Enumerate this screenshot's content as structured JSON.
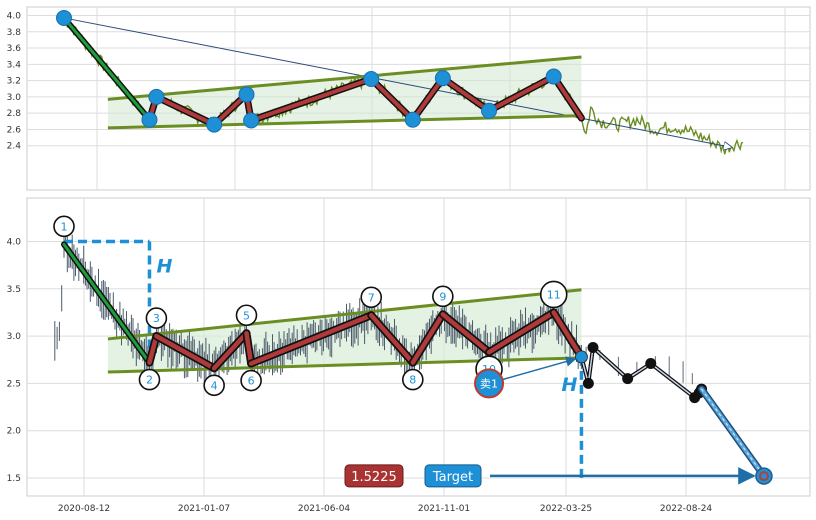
{
  "chart_data": [
    {
      "type": "line",
      "panel": "overview",
      "ylim": [
        2.3,
        4.05
      ],
      "yticks": [
        "2.4",
        "2.6",
        "2.8",
        "3.0",
        "3.2",
        "3.4",
        "3.6",
        "3.8",
        "4.0"
      ],
      "grid": true,
      "colors": {
        "price": "#6b8e23",
        "pivot": "#1e90d6",
        "leg": "#b03a3a",
        "first_leg": "#1e9e3a",
        "channel": "#6b8e23",
        "fill": "#cfe8cf"
      },
      "pivots": [
        {
          "t": 0,
          "y": 3.97
        },
        {
          "t": 37,
          "y": 2.72
        },
        {
          "t": 40,
          "y": 3.0
        },
        {
          "t": 65,
          "y": 2.66
        },
        {
          "t": 79,
          "y": 3.03
        },
        {
          "t": 81,
          "y": 2.71
        },
        {
          "t": 133,
          "y": 3.22
        },
        {
          "t": 151,
          "y": 2.72
        },
        {
          "t": 164,
          "y": 3.23
        },
        {
          "t": 184,
          "y": 2.83
        },
        {
          "t": 212,
          "y": 3.25
        },
        {
          "t": 224,
          "y": 2.74
        }
      ],
      "channel": {
        "upper": [
          [
            19,
            2.97
          ],
          [
            224,
            3.49
          ]
        ],
        "lower": [
          [
            19,
            2.62
          ],
          [
            224,
            2.77
          ]
        ]
      },
      "projection": [
        [
          0,
          3.97
        ],
        [
          289,
          2.38
        ]
      ],
      "price_tail": [
        [
          224,
          2.74
        ],
        [
          226,
          2.55
        ],
        [
          228,
          2.86
        ],
        [
          232,
          2.7
        ],
        [
          240,
          2.66
        ],
        [
          248,
          2.72
        ],
        [
          256,
          2.6
        ],
        [
          264,
          2.64
        ],
        [
          272,
          2.56
        ],
        [
          280,
          2.46
        ],
        [
          286,
          2.36
        ],
        [
          290,
          2.42
        ],
        [
          294,
          2.44
        ]
      ]
    },
    {
      "type": "line",
      "panel": "pattern",
      "ylim": [
        1.25,
        4.4
      ],
      "yticks": [
        "1.5",
        "2.0",
        "2.5",
        "3.0",
        "3.5",
        "4.0"
      ],
      "xticks": [
        "2020-08-12",
        "2021-01-07",
        "2021-06-04",
        "2021-11-01",
        "2022-03-25",
        "2022-08-24"
      ],
      "grid": true,
      "colors": {
        "price": "#4a5a6a",
        "pivot_ring": "#111111",
        "label": "#1e90d6",
        "leg": "#b03a3a",
        "first_leg": "#1e9e3a",
        "channel": "#6b8e23",
        "fill": "#d7edd7",
        "measure": "#1e90d6",
        "forecast": "#111111",
        "sell": "#1e90d6",
        "sell_ring": "#c0392b",
        "target": "#1e90d6",
        "target_arrow": "#1e6fa8",
        "final_leg": "#5ba7dc"
      },
      "pivots": [
        {
          "label": "1",
          "t": 0,
          "y": 3.97
        },
        {
          "label": "2",
          "t": 37,
          "y": 2.72
        },
        {
          "label": "3",
          "t": 40,
          "y": 3.0
        },
        {
          "label": "4",
          "t": 65,
          "y": 2.66
        },
        {
          "label": "5",
          "t": 79,
          "y": 3.03
        },
        {
          "label": "6",
          "t": 81,
          "y": 2.71
        },
        {
          "label": "7",
          "t": 133,
          "y": 3.22
        },
        {
          "label": "8",
          "t": 151,
          "y": 2.72
        },
        {
          "label": "9",
          "t": 164,
          "y": 3.23
        },
        {
          "label": "10",
          "t": 184,
          "y": 2.83
        },
        {
          "label": "11",
          "t": 212,
          "y": 3.25
        }
      ],
      "channel": {
        "upper": [
          [
            19,
            2.97
          ],
          [
            224,
            3.49
          ]
        ],
        "lower": [
          [
            19,
            2.62
          ],
          [
            224,
            2.77
          ]
        ]
      },
      "breakout": {
        "t": 224,
        "y": 2.78
      },
      "forecast_path": [
        [
          224,
          2.78
        ],
        [
          227,
          2.5
        ],
        [
          229,
          2.88
        ],
        [
          244,
          2.55
        ],
        [
          254,
          2.71
        ],
        [
          273,
          2.35
        ],
        [
          275,
          2.4
        ],
        [
          276,
          2.44
        ]
      ],
      "final_leg": [
        [
          276,
          2.44
        ],
        [
          303,
          1.52
        ]
      ],
      "target_value": 1.5225,
      "target_label": "Target",
      "value_label": "1.5225",
      "measure_label": "H",
      "sell_label": "卖1",
      "sell_point": {
        "t": 184,
        "y": 2.5
      }
    }
  ]
}
